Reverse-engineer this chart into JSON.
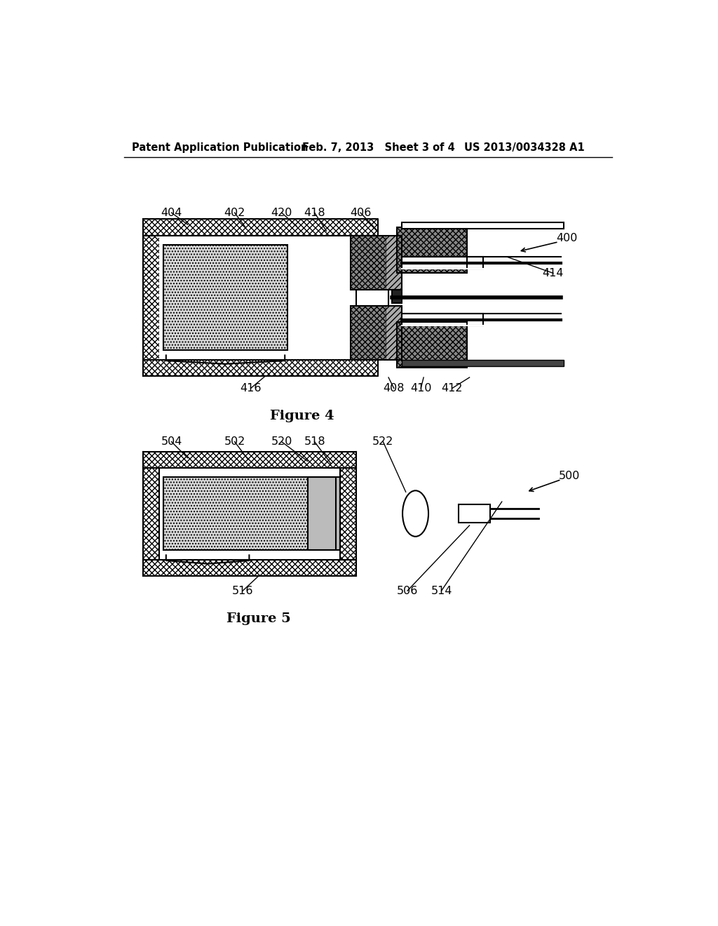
{
  "bg_color": "#ffffff",
  "line_color": "#000000",
  "header_left": "Patent Application Publication",
  "header_mid": "Feb. 7, 2013   Sheet 3 of 4",
  "header_right": "US 2013/0034328 A1",
  "fig4_title": "Figure 4",
  "fig5_title": "Figure 5",
  "crosshatch_face": "#ffffff",
  "dotpattern_face": "#d8d8d8",
  "diag_face": "#aaaaaa",
  "dark_face": "#888888",
  "black_face": "#222222"
}
